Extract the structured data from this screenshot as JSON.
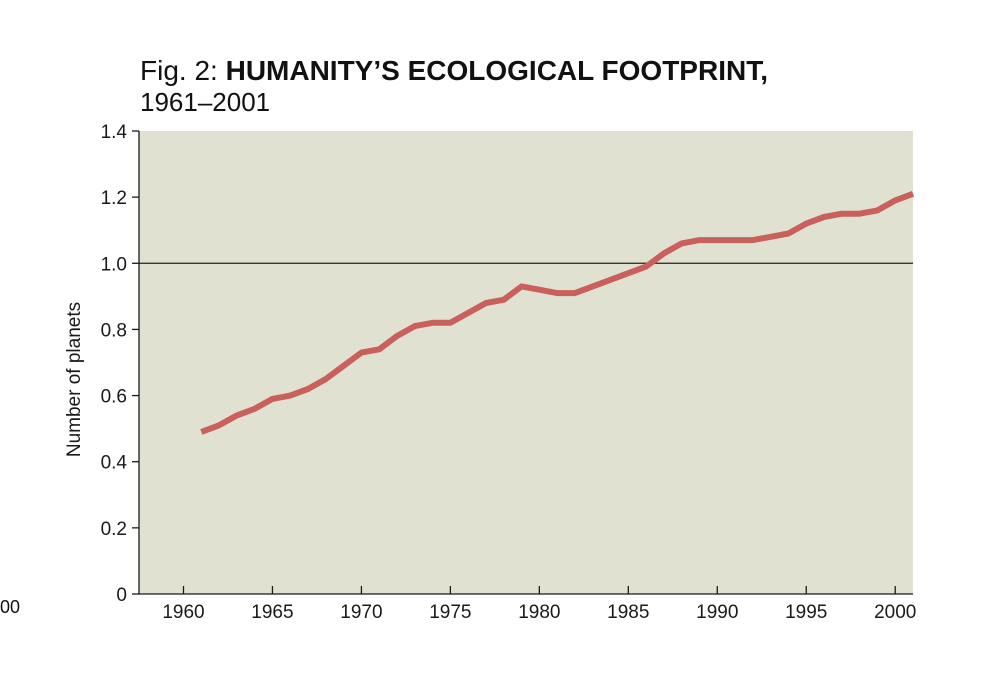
{
  "title_prefix": "Fig. 2:",
  "title_main": "HUMANITY’S ECOLOGICAL FOOTPRINT,",
  "subtitle": "1961–2001",
  "cropped_fragment": "00",
  "colors": {
    "plot_bg": "#e1e1d2",
    "series": "#c9605c",
    "axis": "#1a1a1a"
  },
  "chart_data": {
    "type": "line",
    "ylabel": "Number of planets",
    "xlabel": "",
    "xlim": [
      1957.5,
      2001
    ],
    "ylim": [
      0,
      1.4
    ],
    "xticks": [
      "1960",
      "1965",
      "1970",
      "1975",
      "1980",
      "1985",
      "1990",
      "1995",
      "2000"
    ],
    "yticks": [
      "0",
      "0.2",
      "0.4",
      "0.6",
      "0.8",
      "1.0",
      "1.2",
      "1.4"
    ],
    "reference_line": 1.0,
    "grid": false,
    "series": [
      {
        "x": [
          1961,
          1962,
          1963,
          1964,
          1965,
          1966,
          1967,
          1968,
          1969,
          1970,
          1971,
          1972,
          1973,
          1974,
          1975,
          1976,
          1977,
          1978,
          1979,
          1980,
          1981,
          1982,
          1983,
          1984,
          1985,
          1986,
          1987,
          1988,
          1989,
          1990,
          1991,
          1992,
          1993,
          1994,
          1995,
          1996,
          1997,
          1998,
          1999,
          2000,
          2001
        ],
        "values": [
          0.49,
          0.51,
          0.54,
          0.56,
          0.59,
          0.6,
          0.62,
          0.65,
          0.69,
          0.73,
          0.74,
          0.78,
          0.81,
          0.82,
          0.82,
          0.85,
          0.88,
          0.89,
          0.93,
          0.92,
          0.91,
          0.91,
          0.93,
          0.95,
          0.97,
          0.99,
          1.03,
          1.06,
          1.07,
          1.07,
          1.07,
          1.07,
          1.08,
          1.09,
          1.12,
          1.14,
          1.15,
          1.15,
          1.16,
          1.19,
          1.21
        ]
      }
    ]
  }
}
